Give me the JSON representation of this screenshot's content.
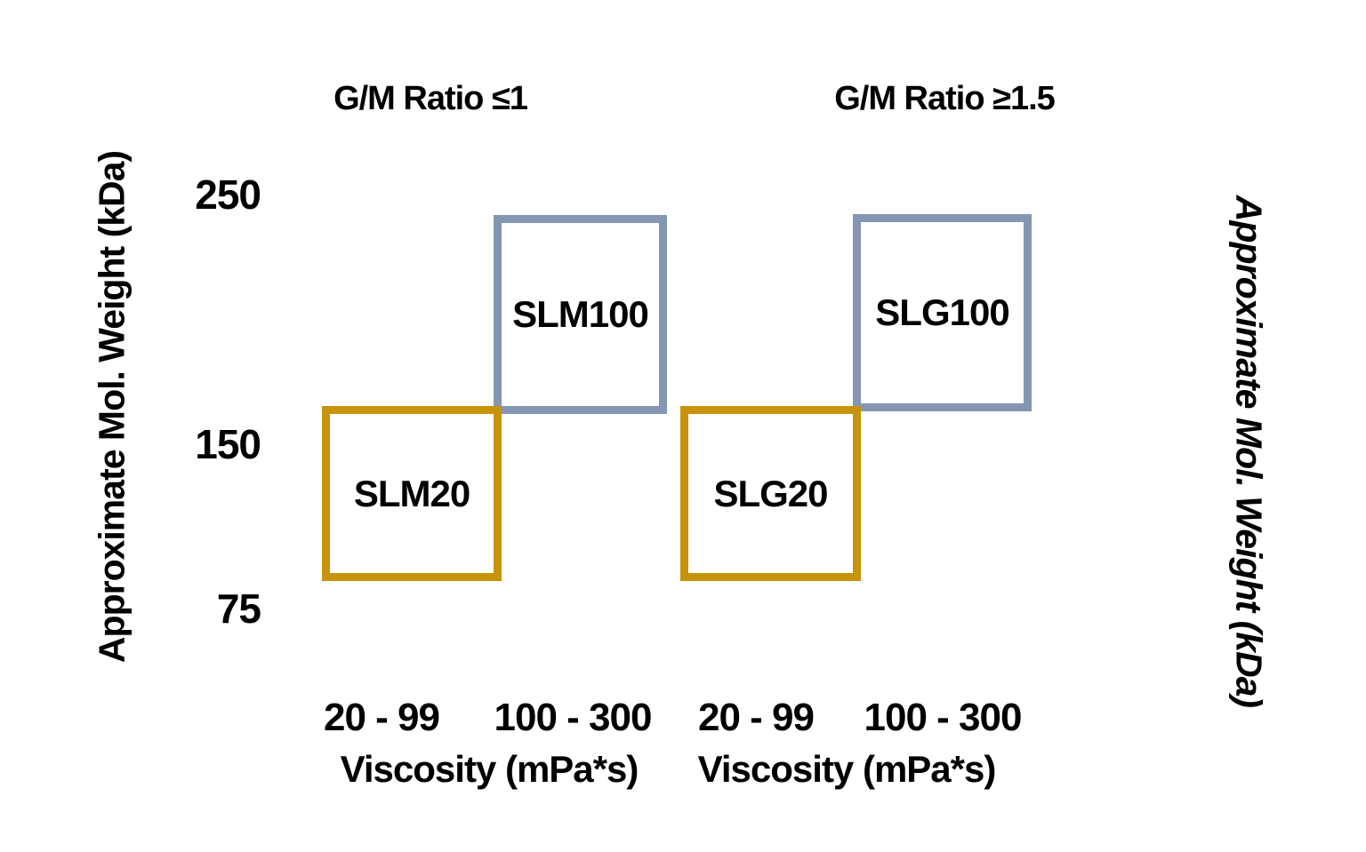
{
  "figure": {
    "background": "#ffffff",
    "text_color": "#000000",
    "left_axis_label": "Approximate Mol. Weight (kDa)",
    "right_axis_label": "Approximate Mol. Weight (kDa)",
    "group_titles": {
      "left": "G/M Ratio ≤1",
      "right": "G/M Ratio ≥1.5"
    },
    "y_ticks": [
      "250",
      "150",
      "75"
    ],
    "x_ticks": {
      "left_group": [
        "20 - 99",
        "100 - 300"
      ],
      "right_group": [
        "20 - 99",
        "100 - 300"
      ]
    },
    "x_axis_titles": {
      "left": "Viscosity (mPa*s)",
      "right": "Viscosity (mPa*s)"
    },
    "boxes": [
      {
        "label": "SLM20",
        "border_color": "#C6930A"
      },
      {
        "label": "SLM100",
        "border_color": "#8496B2"
      },
      {
        "label": "SLG20",
        "border_color": "#C6930A"
      },
      {
        "label": "SLG100",
        "border_color": "#8496B2"
      }
    ],
    "colors": {
      "low_viscosity_box_gold": "#C6930A",
      "high_viscosity_box_blue_gray": "#8496B2"
    }
  },
  "chart_data": {
    "type": "scatter",
    "title": "",
    "xlabel": "Viscosity (mPa*s)",
    "ylabel": "Approximate Mol. Weight (kDa)",
    "y_tick_values": [
      250,
      150,
      75
    ],
    "grid": false,
    "legend": "none",
    "groups": [
      {
        "title": "G/M Ratio ≤1",
        "products": [
          {
            "name": "SLM20",
            "viscosity_mPas_range": "20 - 99",
            "approx_mol_weight_kDa_range": [
              80,
              160
            ],
            "box_color": "#C6930A"
          },
          {
            "name": "SLM100",
            "viscosity_mPas_range": "100 - 300",
            "approx_mol_weight_kDa_range": [
              160,
              240
            ],
            "box_color": "#8496B2"
          }
        ]
      },
      {
        "title": "G/M Ratio ≥1.5",
        "products": [
          {
            "name": "SLG20",
            "viscosity_mPas_range": "20 - 99",
            "approx_mol_weight_kDa_range": [
              80,
              160
            ],
            "box_color": "#C6930A"
          },
          {
            "name": "SLG100",
            "viscosity_mPas_range": "100 - 300",
            "approx_mol_weight_kDa_range": [
              160,
              240
            ],
            "box_color": "#8496B2"
          }
        ]
      }
    ]
  }
}
